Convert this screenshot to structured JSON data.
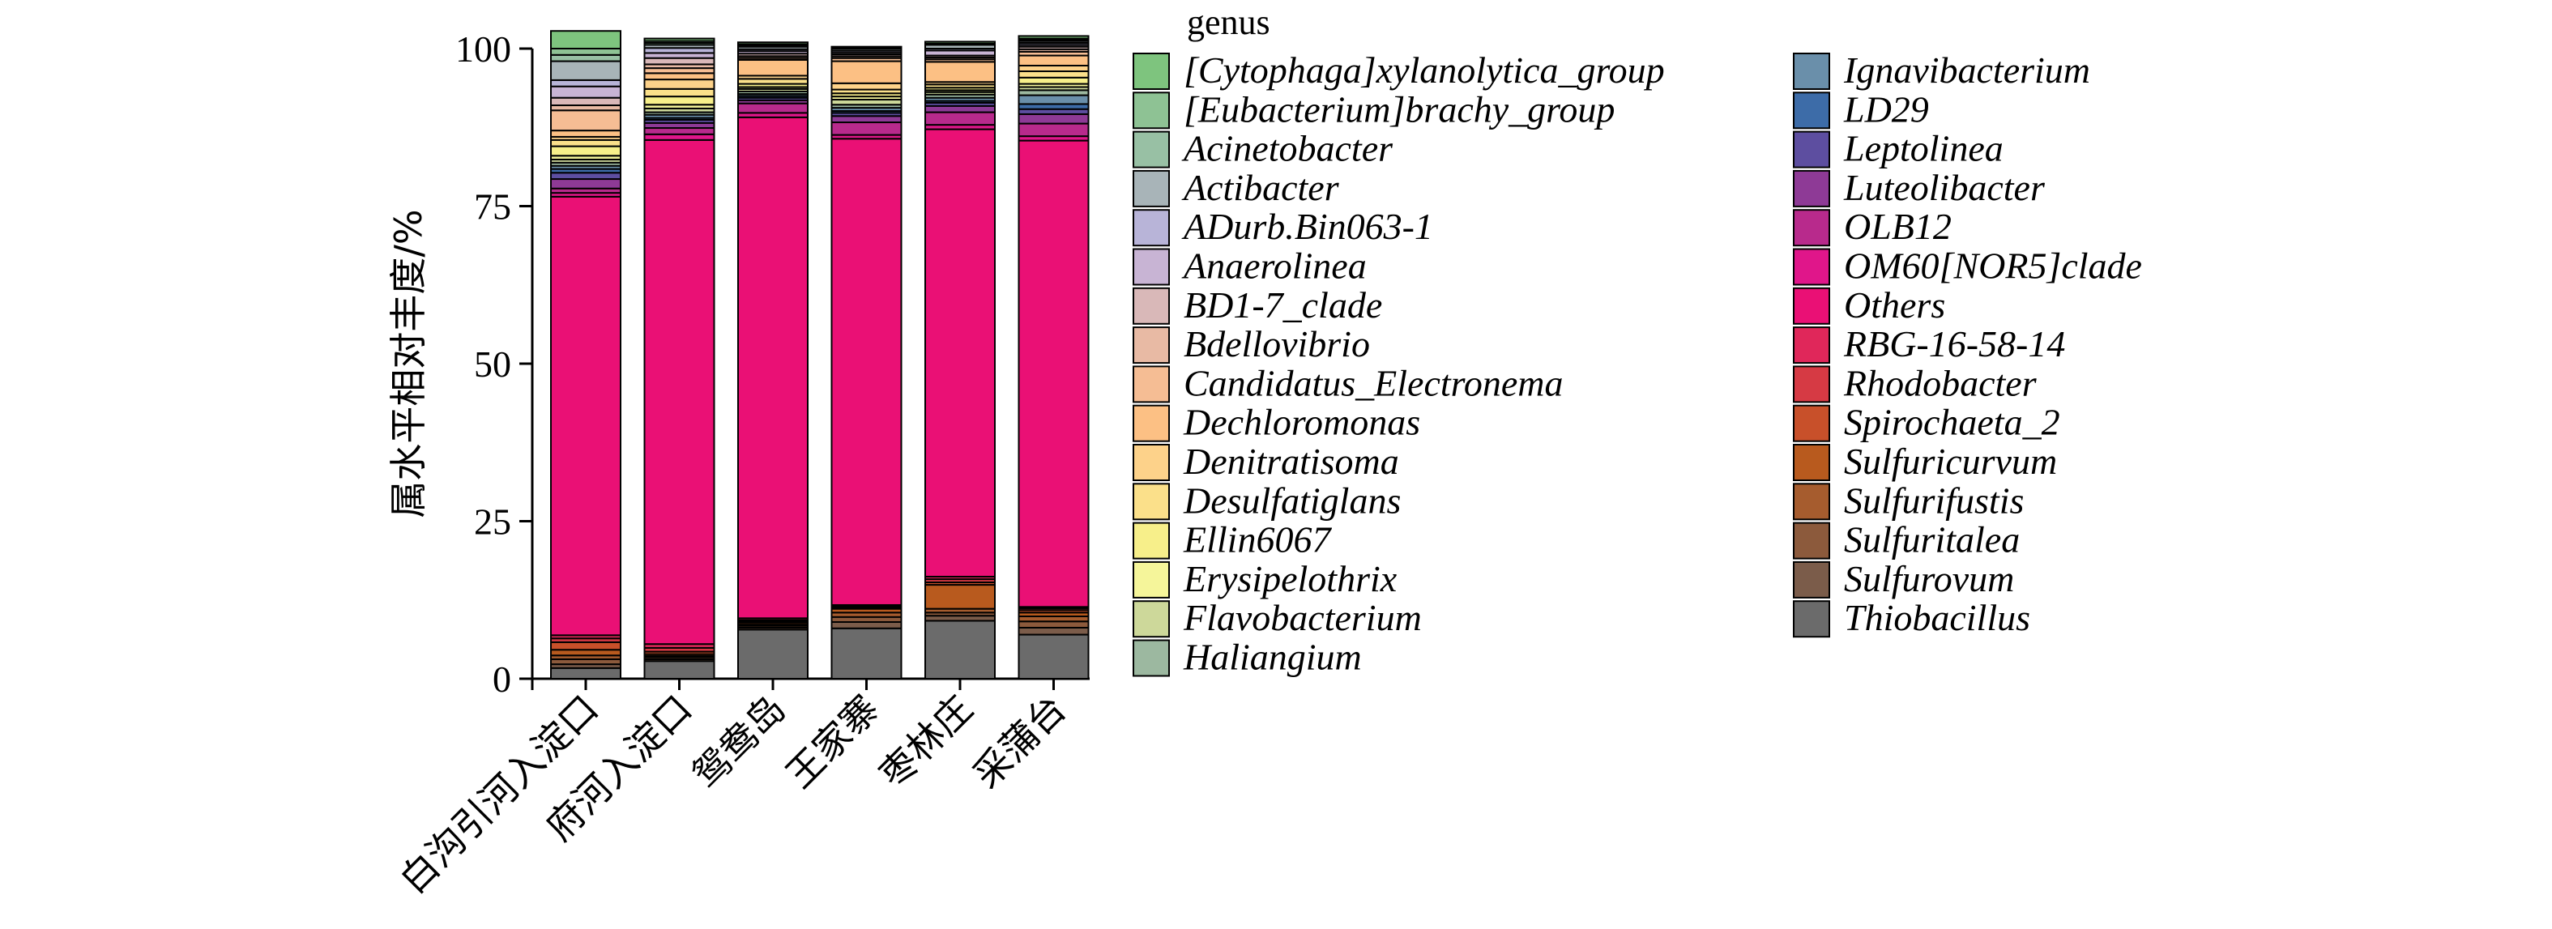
{
  "chart_data": {
    "type": "bar",
    "stacked": true,
    "title": "",
    "xlabel": "",
    "ylabel": "属水平相对丰度/%",
    "ylim": [
      0,
      100
    ],
    "yticks": [
      0,
      25,
      50,
      75,
      100
    ],
    "grid": false,
    "legend_title": "genus",
    "legend_position": "right",
    "categories": [
      "白沟引河入淀口",
      "府河入淀口",
      "鸳鸯岛",
      "王家寨",
      "枣林庄",
      "采蒲台"
    ],
    "series": [
      {
        "name": "Thiobacillus",
        "color": "#6b6b6b",
        "values": [
          1.7,
          2.8,
          7.8,
          8.0,
          9.2,
          7.0
        ]
      },
      {
        "name": "Sulfurovum",
        "color": "#7b5c4a",
        "values": [
          0.6,
          0.3,
          0.3,
          1.0,
          0.8,
          1.1
        ]
      },
      {
        "name": "Sulfuritalea",
        "color": "#8c5a3c",
        "values": [
          0.8,
          0.3,
          0.3,
          0.8,
          0.5,
          1.0
        ]
      },
      {
        "name": "Sulfurifustis",
        "color": "#a65c2e",
        "values": [
          0.6,
          0.2,
          0.2,
          0.7,
          0.6,
          0.8
        ]
      },
      {
        "name": "Sulfuricurvum",
        "color": "#b85a1e",
        "values": [
          0.9,
          0.3,
          0.3,
          0.6,
          3.8,
          0.6
        ]
      },
      {
        "name": "Spirochaeta_2",
        "color": "#c8502a",
        "values": [
          1.2,
          0.4,
          0.2,
          0.2,
          0.4,
          0.4
        ]
      },
      {
        "name": "Rhodobacter",
        "color": "#d63a44",
        "values": [
          0.6,
          0.6,
          0.2,
          0.2,
          0.5,
          0.3
        ]
      },
      {
        "name": "RBG-16-58-14",
        "color": "#e0275a",
        "values": [
          0.5,
          0.6,
          0.3,
          0.2,
          0.4,
          0.2
        ]
      },
      {
        "name": "Others",
        "color": "#ea1075",
        "values": [
          69.6,
          80.0,
          79.5,
          74.0,
          71.0,
          74.0
        ]
      },
      {
        "name": "OM60[NOR5]clade",
        "color": "#e0168a",
        "values": [
          0.6,
          0.9,
          0.7,
          0.6,
          0.7,
          0.7
        ]
      },
      {
        "name": "OLB12",
        "color": "#b82a8c",
        "values": [
          0.7,
          1.0,
          1.5,
          2.0,
          2.0,
          2.0
        ]
      },
      {
        "name": "Luteolibacter",
        "color": "#8e3a96",
        "values": [
          1.5,
          0.8,
          0.5,
          1.0,
          1.0,
          1.5
        ]
      },
      {
        "name": "Leptolinea",
        "color": "#5d4ea0",
        "values": [
          1.0,
          0.5,
          0.4,
          0.5,
          0.5,
          0.8
        ]
      },
      {
        "name": "LD29",
        "color": "#3d6ca8",
        "values": [
          0.6,
          0.3,
          0.3,
          0.3,
          0.3,
          0.8
        ]
      },
      {
        "name": "Ignavibacterium",
        "color": "#6a8faa",
        "values": [
          0.5,
          0.5,
          0.3,
          0.5,
          0.5,
          1.4
        ]
      },
      {
        "name": "Haliangium",
        "color": "#9cb8a0",
        "values": [
          0.5,
          0.4,
          0.4,
          0.5,
          0.5,
          0.8
        ]
      },
      {
        "name": "Flavobacterium",
        "color": "#cdd89a",
        "values": [
          0.5,
          0.6,
          0.4,
          0.8,
          0.4,
          0.5
        ]
      },
      {
        "name": "Erysipelothrix",
        "color": "#f5f59a",
        "values": [
          0.6,
          0.6,
          0.3,
          0.5,
          0.3,
          0.5
        ]
      },
      {
        "name": "Ellin6067",
        "color": "#f7ef8a",
        "values": [
          1.5,
          1.3,
          0.5,
          0.5,
          0.4,
          1.0
        ]
      },
      {
        "name": "Desulfatiglans",
        "color": "#fbe08a",
        "values": [
          1.0,
          1.2,
          0.8,
          0.6,
          0.5,
          1.0
        ]
      },
      {
        "name": "Denitratisoma",
        "color": "#fdd28a",
        "values": [
          0.5,
          1.5,
          0.5,
          1.0,
          0.4,
          0.9
        ]
      },
      {
        "name": "Dechloromonas",
        "color": "#fcc084",
        "values": [
          1.0,
          1.0,
          2.5,
          3.5,
          3.2,
          1.6
        ]
      },
      {
        "name": "Candidatus_Electronema",
        "color": "#f5bd94",
        "values": [
          3.2,
          0.8,
          0.3,
          0.5,
          0.4,
          0.6
        ]
      },
      {
        "name": "Bdellovibrio",
        "color": "#e8baa4",
        "values": [
          0.8,
          0.6,
          0.3,
          0.3,
          0.3,
          0.4
        ]
      },
      {
        "name": "BD1-7_clade",
        "color": "#d9b8b8",
        "values": [
          1.2,
          1.0,
          0.4,
          0.3,
          0.3,
          0.4
        ]
      },
      {
        "name": "Anaerolinea",
        "color": "#c8b4d4",
        "values": [
          1.8,
          0.8,
          0.4,
          0.3,
          0.8,
          0.3
        ]
      },
      {
        "name": "ADurb.Bin063-1",
        "color": "#b8b4d8",
        "values": [
          1.0,
          0.8,
          0.3,
          0.3,
          0.3,
          0.3
        ]
      },
      {
        "name": "Actibacter",
        "color": "#a8b4b8",
        "values": [
          3.0,
          0.5,
          0.4,
          0.3,
          0.6,
          0.3
        ]
      },
      {
        "name": "Acinetobacter",
        "color": "#98c0a4",
        "values": [
          1.0,
          0.3,
          0.2,
          0.1,
          0.1,
          0.2
        ]
      },
      {
        "name": "[Eubacterium]brachy_group",
        "color": "#8ec294",
        "values": [
          1.0,
          0.3,
          0.2,
          0.1,
          0.1,
          0.2
        ]
      },
      {
        "name": "[Cytophaga]xylanolytica_group",
        "color": "#7ec47e",
        "values": [
          2.8,
          0.4,
          0.3,
          0.1,
          0.3,
          0.4
        ]
      }
    ]
  }
}
